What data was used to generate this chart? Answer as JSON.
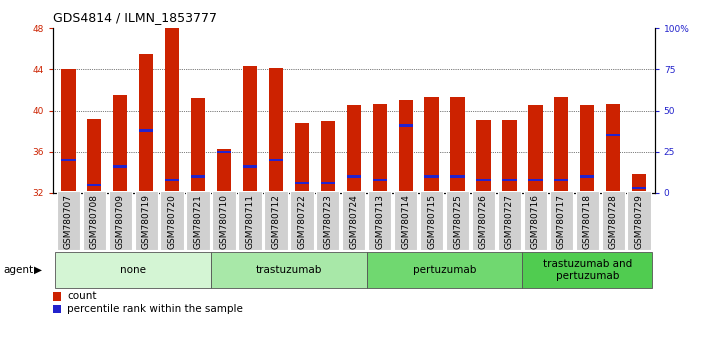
{
  "title": "GDS4814 / ILMN_1853777",
  "samples": [
    "GSM780707",
    "GSM780708",
    "GSM780709",
    "GSM780719",
    "GSM780720",
    "GSM780721",
    "GSM780710",
    "GSM780711",
    "GSM780712",
    "GSM780722",
    "GSM780723",
    "GSM780724",
    "GSM780713",
    "GSM780714",
    "GSM780715",
    "GSM780725",
    "GSM780726",
    "GSM780727",
    "GSM780716",
    "GSM780717",
    "GSM780718",
    "GSM780728",
    "GSM780729"
  ],
  "counts": [
    44.0,
    39.2,
    41.5,
    45.5,
    48.0,
    41.2,
    36.3,
    44.3,
    44.1,
    38.8,
    39.0,
    40.5,
    40.6,
    41.0,
    41.3,
    41.3,
    39.1,
    39.1,
    40.5,
    41.3,
    40.5,
    40.6,
    33.8
  ],
  "percentile_ranks_pct": [
    20.0,
    5.0,
    16.0,
    38.0,
    8.0,
    10.0,
    25.0,
    16.0,
    20.0,
    6.0,
    6.0,
    10.0,
    8.0,
    41.0,
    10.0,
    10.0,
    8.0,
    8.0,
    8.0,
    8.0,
    10.0,
    35.0,
    3.0
  ],
  "groups": [
    {
      "label": "none",
      "start": 0,
      "end": 6,
      "color": "#d4f5d4"
    },
    {
      "label": "trastuzumab",
      "start": 6,
      "end": 12,
      "color": "#a8e8a8"
    },
    {
      "label": "pertuzumab",
      "start": 12,
      "end": 18,
      "color": "#70d870"
    },
    {
      "label": "trastuzumab and\npertuzumab",
      "start": 18,
      "end": 23,
      "color": "#50cc50"
    }
  ],
  "bar_color": "#cc2200",
  "marker_color": "#2222cc",
  "ylim_left": [
    32,
    48
  ],
  "ylim_right": [
    0,
    100
  ],
  "yticks_left": [
    32,
    36,
    40,
    44,
    48
  ],
  "yticks_right": [
    0,
    25,
    50,
    75,
    100
  ],
  "yticklabels_right": [
    "0",
    "25",
    "50",
    "75",
    "100%"
  ],
  "bar_width": 0.55,
  "title_fontsize": 9,
  "tick_fontsize": 6.5,
  "label_fontsize": 7.5,
  "legend_fontsize": 7.5,
  "agent_label": "agent"
}
